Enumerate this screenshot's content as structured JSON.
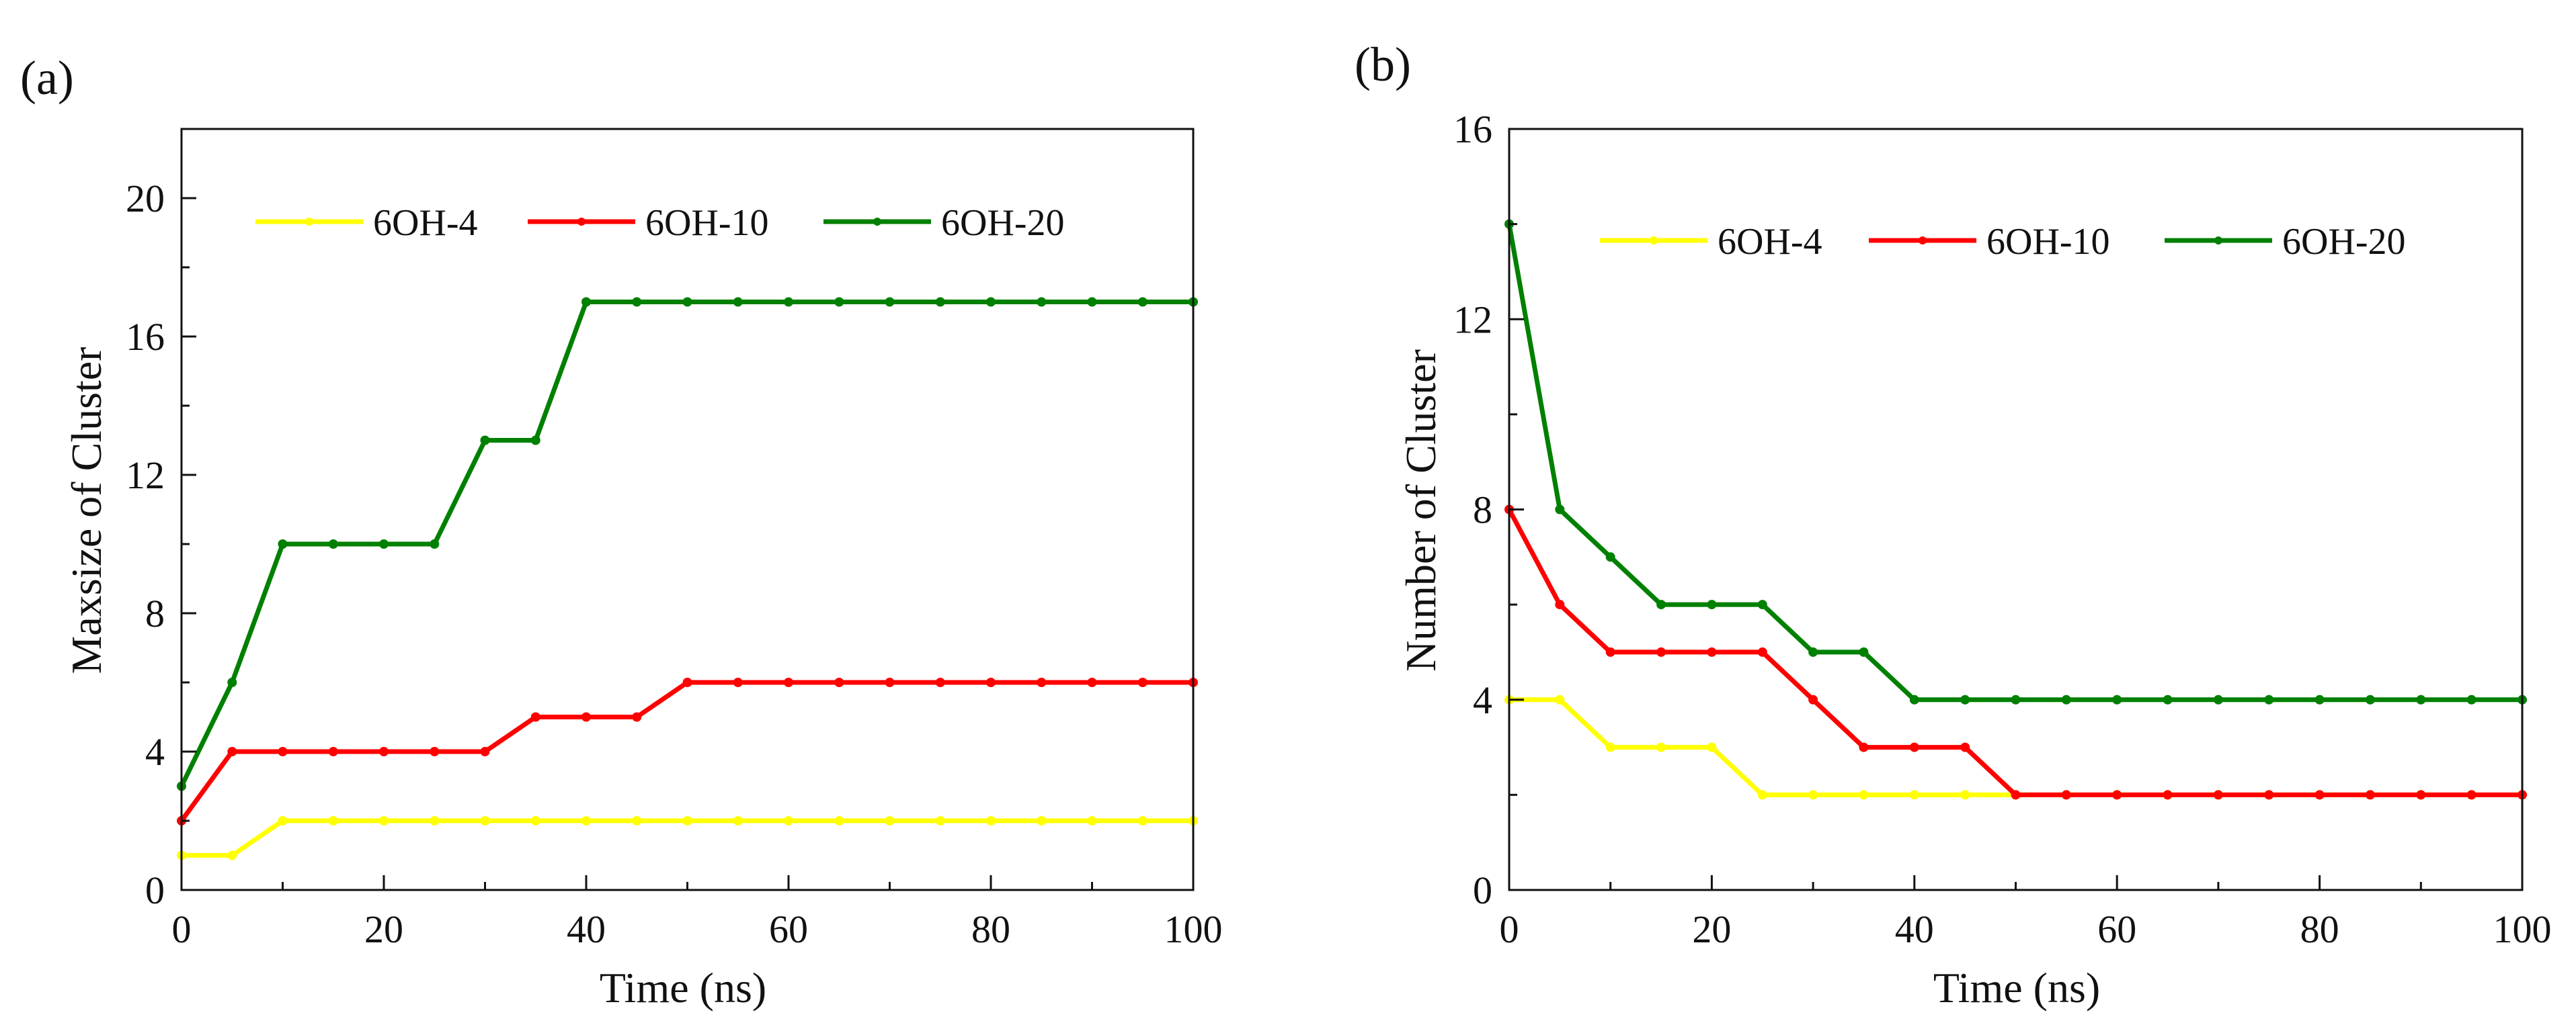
{
  "chart_data": [
    {
      "type": "line",
      "panel_label": "(a)",
      "title": "",
      "xlabel": "Time (ns)",
      "ylabel": "Maxsize of Cluster",
      "xlim": [
        0,
        100
      ],
      "ylim": [
        0,
        22
      ],
      "xticks": [
        0,
        20,
        40,
        60,
        80,
        100
      ],
      "yticks": [
        0,
        4,
        8,
        12,
        16,
        20
      ],
      "grid": false,
      "legend_position": "top",
      "x": [
        0,
        5,
        10,
        15,
        20,
        25,
        30,
        35,
        40,
        45,
        50,
        55,
        60,
        65,
        70,
        75,
        80,
        85,
        90,
        95,
        100
      ],
      "series": [
        {
          "name": "6OH-4",
          "color": "#ffff00",
          "values": [
            1,
            1,
            2,
            2,
            2,
            2,
            2,
            2,
            2,
            2,
            2,
            2,
            2,
            2,
            2,
            2,
            2,
            2,
            2,
            2,
            2
          ]
        },
        {
          "name": "6OH-10",
          "color": "#ff0000",
          "values": [
            2,
            4,
            4,
            4,
            4,
            4,
            4,
            5,
            5,
            5,
            6,
            6,
            6,
            6,
            6,
            6,
            6,
            6,
            6,
            6,
            6
          ]
        },
        {
          "name": "6OH-20",
          "color": "#008000",
          "values": [
            3,
            6,
            10,
            10,
            10,
            10,
            13,
            13,
            17,
            17,
            17,
            17,
            17,
            17,
            17,
            17,
            17,
            17,
            17,
            17,
            17
          ]
        }
      ]
    },
    {
      "type": "line",
      "panel_label": "(b)",
      "title": "",
      "xlabel": "Time (ns)",
      "ylabel": "Number of Cluster",
      "xlim": [
        0,
        100
      ],
      "ylim": [
        0,
        16
      ],
      "xticks": [
        0,
        20,
        40,
        60,
        80,
        100
      ],
      "yticks": [
        0,
        4,
        8,
        12,
        16
      ],
      "grid": false,
      "legend_position": "top",
      "x": [
        0,
        5,
        10,
        15,
        20,
        25,
        30,
        35,
        40,
        45,
        50,
        55,
        60,
        65,
        70,
        75,
        80,
        85,
        90,
        95,
        100
      ],
      "series": [
        {
          "name": "6OH-4",
          "color": "#ffff00",
          "values": [
            4,
            4,
            3,
            3,
            3,
            2,
            2,
            2,
            2,
            2,
            2,
            2,
            2,
            2,
            2,
            2,
            2,
            2,
            2,
            2,
            2
          ]
        },
        {
          "name": "6OH-10",
          "color": "#ff0000",
          "values": [
            8,
            6,
            5,
            5,
            5,
            5,
            4,
            3,
            3,
            3,
            2,
            2,
            2,
            2,
            2,
            2,
            2,
            2,
            2,
            2,
            2
          ]
        },
        {
          "name": "6OH-20",
          "color": "#008000",
          "values": [
            14,
            8,
            7,
            6,
            6,
            6,
            5,
            5,
            4,
            4,
            4,
            4,
            4,
            4,
            4,
            4,
            4,
            4,
            4,
            4,
            4
          ]
        }
      ]
    }
  ]
}
